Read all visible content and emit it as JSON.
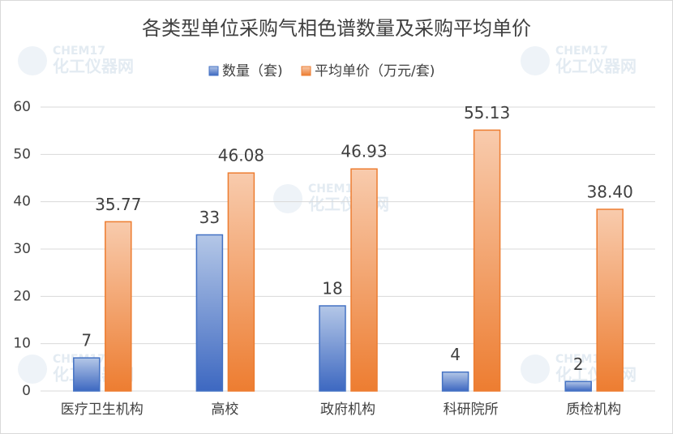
{
  "chart_data": {
    "type": "bar",
    "title": "各类型单位采购气相色谱数量及采购平均单价",
    "categories": [
      "医疗卫生机构",
      "高校",
      "政府机构",
      "科研院所",
      "质检机构"
    ],
    "series": [
      {
        "name": "数量（套)",
        "color": "#4472c4",
        "values": [
          7,
          33,
          18,
          4,
          2
        ]
      },
      {
        "name": "平均单价（万元/套)",
        "color": "#ed7d31",
        "values": [
          35.77,
          46.08,
          46.93,
          55.13,
          38.4
        ],
        "value_labels": [
          "35.77",
          "46.08",
          "46.93",
          "55.13",
          "38.40"
        ]
      }
    ],
    "ylim": [
      0,
      60
    ],
    "yticks": [
      0,
      10,
      20,
      30,
      40,
      50,
      60
    ],
    "grid": true,
    "legend": "top",
    "watermark": {
      "brand": "CHEM17",
      "name": "化工仪器网"
    }
  }
}
